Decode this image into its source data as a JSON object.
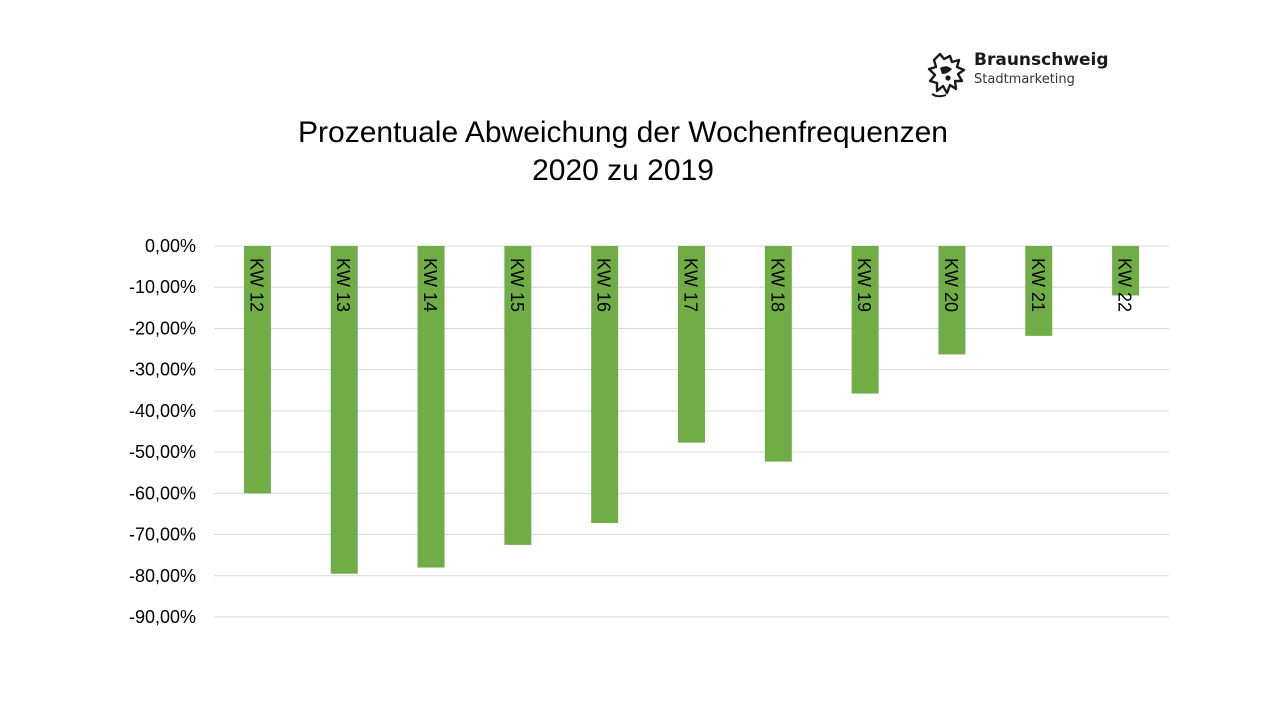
{
  "logo": {
    "name": "Braunschweig",
    "subtitle": "Stadtmarketing",
    "icon": "lion-coat-of-arms-icon"
  },
  "chart_data": {
    "type": "bar",
    "title_lines": [
      "Prozentuale Abweichung der Wochenfrequenzen",
      "2020 zu 2019"
    ],
    "categories": [
      "KW 12",
      "KW 13",
      "KW 14",
      "KW 15",
      "KW 16",
      "KW 17",
      "KW 18",
      "KW 19",
      "KW 20",
      "KW 21",
      "KW 22"
    ],
    "values": [
      -60.0,
      -79.5,
      -78.0,
      -72.5,
      -67.2,
      -47.7,
      -52.3,
      -35.8,
      -26.3,
      -21.8,
      -12.0
    ],
    "ylim": [
      -90,
      0
    ],
    "yticks": [
      0,
      -10,
      -20,
      -30,
      -40,
      -50,
      -60,
      -70,
      -80,
      -90
    ],
    "ytick_labels": [
      "0,00%",
      "-10,00%",
      "-20,00%",
      "-30,00%",
      "-40,00%",
      "-50,00%",
      "-60,00%",
      "-70,00%",
      "-80,00%",
      "-90,00%"
    ],
    "grid": true,
    "bar_color": "#70ad47",
    "gridline_color": "#d9d9d9",
    "xlabel": "",
    "ylabel": ""
  }
}
